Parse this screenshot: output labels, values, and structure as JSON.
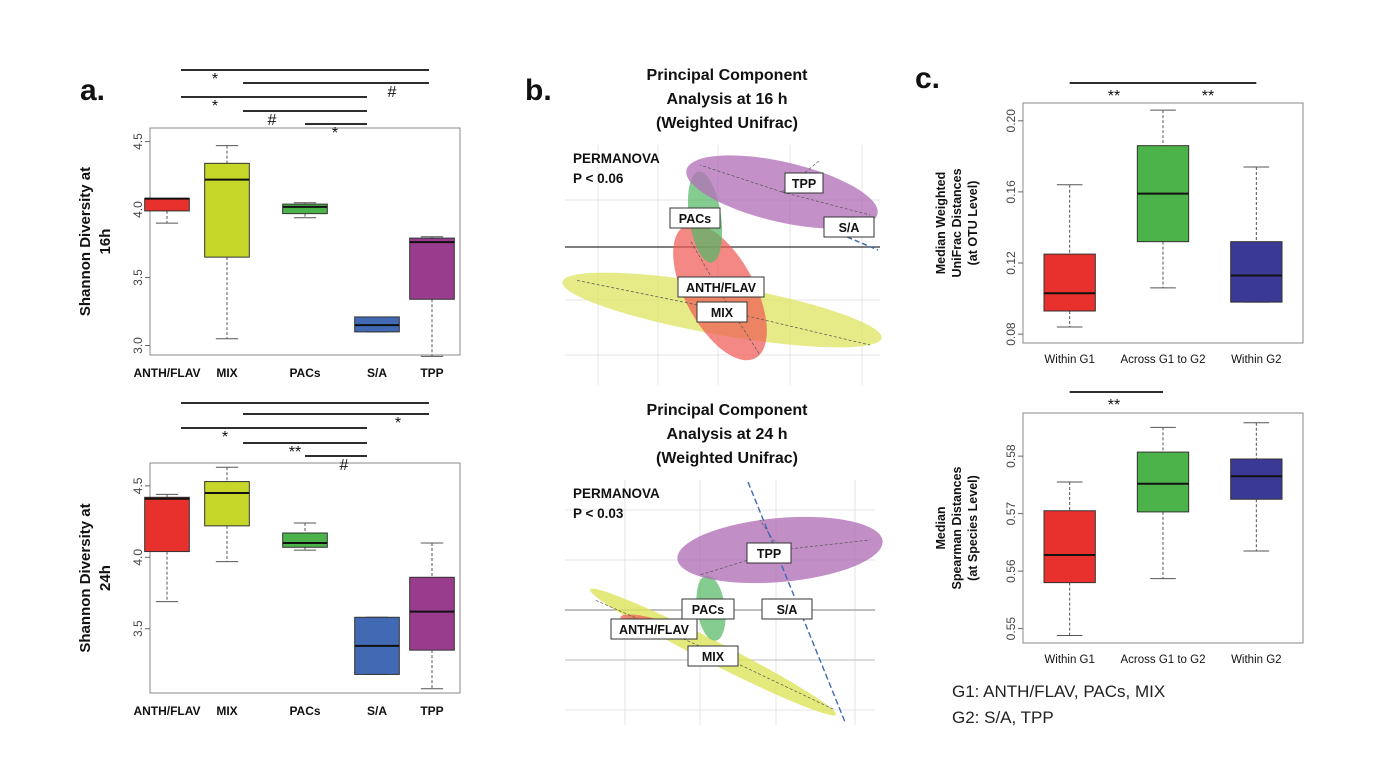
{
  "colors": {
    "ANTH/FLAV": "#e8312c",
    "MIX": "#c7d72a",
    "PACs": "#4cb24a",
    "S/A": "#4169b4",
    "TPP": "#9a3c8e",
    "G1": "#e8312c",
    "Across": "#4cb24a",
    "G2": "#3a3a96"
  },
  "panels": {
    "a": {
      "letter": "a."
    },
    "b": {
      "letter": "b."
    },
    "c": {
      "letter": "c."
    }
  },
  "chart_data": [
    {
      "id": "a16",
      "type": "box",
      "ylabel": [
        "Shannon Diversity at",
        "16h"
      ],
      "categories": [
        "ANTH/FLAV",
        "MIX",
        "PACs",
        "S/A",
        "TPP"
      ],
      "ylim": [
        2.93,
        4.6
      ],
      "yticks": [
        3.0,
        3.5,
        4.0,
        4.5
      ],
      "tick_labels": [
        "3.0",
        "3.5",
        "4.0",
        "4.5"
      ],
      "boxes": [
        {
          "name": "ANTH/FLAV",
          "whislo": 3.9,
          "q1": 3.99,
          "med": 4.08,
          "q3": 4.08,
          "whishi": 4.08
        },
        {
          "name": "MIX",
          "whislo": 3.05,
          "q1": 3.65,
          "med": 4.22,
          "q3": 4.34,
          "whishi": 4.47
        },
        {
          "name": "PACs",
          "whislo": 3.94,
          "q1": 3.97,
          "med": 4.02,
          "q3": 4.04,
          "whishi": 4.05
        },
        {
          "name": "S/A",
          "whislo": 3.1,
          "q1": 3.1,
          "med": 3.15,
          "q3": 3.21,
          "whishi": 3.21
        },
        {
          "name": "TPP",
          "whislo": 2.92,
          "q1": 3.34,
          "med": 3.76,
          "q3": 3.79,
          "whishi": 3.8
        }
      ],
      "significance": [
        {
          "from": 0,
          "to": 4,
          "label": "*"
        },
        {
          "from": 1,
          "to": 4,
          "label": "#"
        },
        {
          "from": 0,
          "to": 3,
          "label": "*"
        },
        {
          "from": 1,
          "to": 3,
          "label": "#"
        },
        {
          "from": 2,
          "to": 3,
          "label": "*"
        }
      ]
    },
    {
      "id": "a24",
      "type": "box",
      "ylabel": [
        "Shannon Diversity at",
        "24h"
      ],
      "categories": [
        "ANTH/FLAV",
        "MIX",
        "PACs",
        "S/A",
        "TPP"
      ],
      "ylim": [
        3.05,
        4.66
      ],
      "yticks": [
        3.5,
        4.0,
        4.5
      ],
      "tick_labels": [
        "3.5",
        "4.0",
        "4.5"
      ],
      "boxes": [
        {
          "name": "ANTH/FLAV",
          "whislo": 3.69,
          "q1": 4.04,
          "med": 4.41,
          "q3": 4.42,
          "whishi": 4.44
        },
        {
          "name": "MIX",
          "whislo": 3.97,
          "q1": 4.22,
          "med": 4.45,
          "q3": 4.53,
          "whishi": 4.63
        },
        {
          "name": "PACs",
          "whislo": 4.05,
          "q1": 4.07,
          "med": 4.1,
          "q3": 4.17,
          "whishi": 4.24
        },
        {
          "name": "S/A",
          "whislo": 3.18,
          "q1": 3.18,
          "med": 3.38,
          "q3": 3.58,
          "whishi": 3.58
        },
        {
          "name": "TPP",
          "whislo": 3.08,
          "q1": 3.35,
          "med": 3.62,
          "q3": 3.86,
          "whishi": 4.1
        }
      ],
      "significance": [
        {
          "from": 0,
          "to": 4,
          "label": ""
        },
        {
          "from": 1,
          "to": 4,
          "label": "*"
        },
        {
          "from": 0,
          "to": 3,
          "label": "*"
        },
        {
          "from": 1,
          "to": 3,
          "label": "**"
        },
        {
          "from": 2,
          "to": 3,
          "label": "#"
        }
      ]
    },
    {
      "id": "b16",
      "type": "scatter",
      "title": [
        "Principal Component",
        "Analysis at 16 h",
        "(Weighted Unifrac)"
      ],
      "annotation": [
        "PERMANOVA",
        "P < 0.06"
      ],
      "groups": [
        {
          "name": "TPP",
          "shape": "ellipse"
        },
        {
          "name": "S/A",
          "shape": "segment"
        },
        {
          "name": "PACs",
          "shape": "ellipse"
        },
        {
          "name": "ANTH/FLAV",
          "shape": "ellipse"
        },
        {
          "name": "MIX",
          "shape": "ellipse"
        }
      ]
    },
    {
      "id": "b24",
      "type": "scatter",
      "title": [
        "Principal Component",
        "Analysis at 24 h",
        "(Weighted Unifrac)"
      ],
      "annotation": [
        "PERMANOVA",
        "P < 0.03"
      ],
      "groups": [
        {
          "name": "TPP",
          "shape": "ellipse"
        },
        {
          "name": "S/A",
          "shape": "segment"
        },
        {
          "name": "PACs",
          "shape": "ellipse"
        },
        {
          "name": "ANTH/FLAV",
          "shape": "ellipse"
        },
        {
          "name": "MIX",
          "shape": "ellipse"
        }
      ]
    },
    {
      "id": "c1",
      "type": "box",
      "ylabel": [
        "Median Weighted",
        "UniFrac Distances",
        "(at OTU Level)"
      ],
      "categories": [
        "Within G1",
        "Across G1 to G2",
        "Within G2"
      ],
      "ylim": [
        0.075,
        0.21
      ],
      "yticks": [
        0.08,
        0.12,
        0.16,
        0.2
      ],
      "tick_labels": [
        "0.08",
        "0.12",
        "0.16",
        "0.20"
      ],
      "boxes": [
        {
          "name": "Within G1",
          "whislo": 0.084,
          "q1": 0.093,
          "med": 0.103,
          "q3": 0.125,
          "whishi": 0.164
        },
        {
          "name": "Across G1 to G2",
          "whislo": 0.106,
          "q1": 0.132,
          "med": 0.159,
          "q3": 0.186,
          "whishi": 0.206
        },
        {
          "name": "Within G2",
          "whislo": 0.098,
          "q1": 0.098,
          "med": 0.113,
          "q3": 0.132,
          "whishi": 0.174
        }
      ],
      "significance": [
        {
          "from": 0,
          "to": 1,
          "label": "**"
        },
        {
          "from": 1,
          "to": 2,
          "label": "**"
        }
      ]
    },
    {
      "id": "c2",
      "type": "box",
      "ylabel": [
        "Median",
        "Spearman Distances",
        "(at Species Level)"
      ],
      "categories": [
        "Within G1",
        "Across G1 to G2",
        "Within G2"
      ],
      "ylim": [
        0.5475,
        0.5875
      ],
      "yticks": [
        0.55,
        0.56,
        0.57,
        0.58
      ],
      "tick_labels": [
        "0.55",
        "0.56",
        "0.57",
        "0.58"
      ],
      "boxes": [
        {
          "name": "Within G1",
          "whislo": 0.5488,
          "q1": 0.558,
          "med": 0.5628,
          "q3": 0.5705,
          "whishi": 0.5755
        },
        {
          "name": "Across G1 to G2",
          "whislo": 0.5587,
          "q1": 0.5703,
          "med": 0.5752,
          "q3": 0.5807,
          "whishi": 0.585
        },
        {
          "name": "Within G2",
          "whislo": 0.5635,
          "q1": 0.5725,
          "med": 0.5765,
          "q3": 0.5795,
          "whishi": 0.5858
        }
      ],
      "significance": [
        {
          "from": 0,
          "to": 1,
          "label": "**"
        }
      ]
    }
  ],
  "legend_groups": [
    "G1: ANTH/FLAV, PACs, MIX",
    "G2: S/A, TPP"
  ]
}
